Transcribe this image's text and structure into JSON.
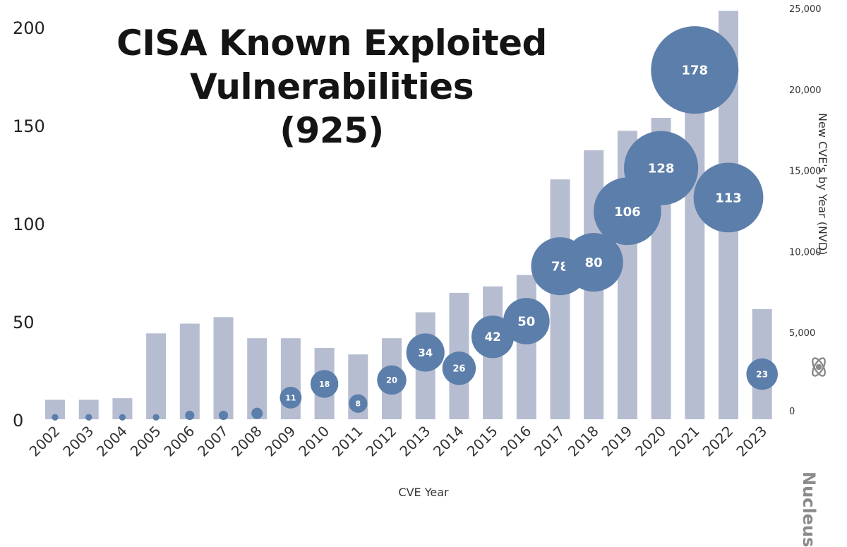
{
  "title": {
    "line1": "CISA Known Exploited",
    "line2": "Vulnerabilities",
    "line3": "(925)"
  },
  "logo": {
    "name": "nucleus-logo-icon",
    "text": "Nucleus"
  },
  "colors": {
    "bars": "#b7bdd1",
    "bubbles": "#5c7eaa",
    "bubble_text": "#ffffff",
    "axis_text": "#222222"
  },
  "chart_data": {
    "type": "bar+bubble",
    "categories": [
      "2002",
      "2003",
      "2004",
      "2005",
      "2006",
      "2007",
      "2008",
      "2009",
      "2010",
      "2011",
      "2012",
      "2013",
      "2014",
      "2015",
      "2016",
      "2017",
      "2018",
      "2019",
      "2020",
      "2021",
      "2022",
      "2023"
    ],
    "xlabel": "CVE Year",
    "ylabel_left": "",
    "ylabel_right": "New CVE's by Year (NVD)",
    "yticks_left": [
      "0",
      "50",
      "100",
      "150",
      "200"
    ],
    "yticks_right": [
      "0",
      "5,000",
      "10,000",
      "15,000",
      "20,000",
      "25,000"
    ],
    "ylim_left": [
      0,
      200
    ],
    "ylim_right": [
      0,
      25000
    ],
    "series": [
      {
        "name": "New CVE's by Year (NVD)",
        "kind": "bar",
        "axis": "right",
        "values": [
          1200,
          1200,
          1300,
          5300,
          5900,
          6300,
          5000,
          5000,
          4400,
          4000,
          5000,
          6600,
          7800,
          8200,
          8900,
          14800,
          16600,
          17800,
          18600,
          21300,
          25200,
          6800
        ]
      },
      {
        "name": "Known Exploited Vulnerabilities",
        "kind": "bubble",
        "axis": "left",
        "values": [
          1,
          1,
          1,
          1,
          2,
          2,
          3,
          11,
          18,
          8,
          20,
          34,
          26,
          42,
          50,
          78,
          80,
          106,
          128,
          178,
          113,
          23
        ],
        "labels": [
          "",
          "",
          "",
          "",
          "",
          "",
          "",
          "11",
          "18",
          "8",
          "20",
          "34",
          "26",
          "42",
          "50",
          "78",
          "80",
          "106",
          "128",
          "178",
          "113",
          "23"
        ]
      }
    ],
    "grid": false,
    "legend": "none"
  }
}
